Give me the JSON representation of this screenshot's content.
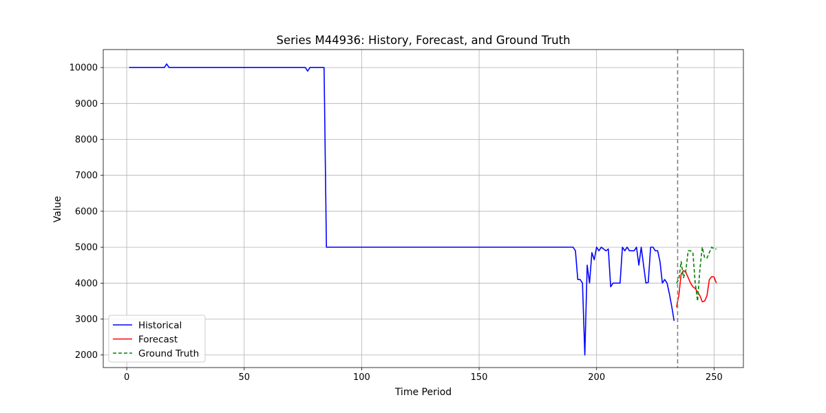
{
  "chart_data": {
    "type": "line",
    "title": "Series M44936: History, Forecast, and Ground Truth",
    "xlabel": "Time Period",
    "ylabel": "Value",
    "xlim": [
      -10,
      262.5
    ],
    "ylim": [
      1650,
      10500
    ],
    "xticks": [
      0,
      50,
      100,
      150,
      200,
      250
    ],
    "yticks": [
      2000,
      3000,
      4000,
      5000,
      6000,
      7000,
      8000,
      9000,
      10000
    ],
    "grid": true,
    "legend_position": "bottom-left",
    "vline": {
      "x": 234.5,
      "style": "dashed",
      "color": "#808080"
    },
    "series": [
      {
        "name": "Historical",
        "color": "#0000ff",
        "style": "solid",
        "points": [
          [
            1,
            10000
          ],
          [
            16,
            10000
          ],
          [
            17,
            10100
          ],
          [
            18,
            10000
          ],
          [
            76,
            10000
          ],
          [
            77,
            9900
          ],
          [
            78,
            10000
          ],
          [
            84,
            10000
          ],
          [
            85,
            5000
          ],
          [
            190,
            5000
          ],
          [
            191,
            4900
          ],
          [
            192,
            4100
          ],
          [
            193,
            4100
          ],
          [
            194,
            4000
          ],
          [
            195,
            2000
          ],
          [
            196,
            4500
          ],
          [
            197,
            4000
          ],
          [
            198,
            4850
          ],
          [
            199,
            4650
          ],
          [
            200,
            5000
          ],
          [
            201,
            4900
          ],
          [
            202,
            5000
          ],
          [
            203,
            4950
          ],
          [
            204,
            4900
          ],
          [
            205,
            4950
          ],
          [
            206,
            3900
          ],
          [
            207,
            4000
          ],
          [
            208,
            4000
          ],
          [
            209,
            4000
          ],
          [
            210,
            4000
          ],
          [
            211,
            5000
          ],
          [
            212,
            4900
          ],
          [
            213,
            5000
          ],
          [
            214,
            4900
          ],
          [
            215,
            4900
          ],
          [
            216,
            4900
          ],
          [
            217,
            5000
          ],
          [
            218,
            4500
          ],
          [
            219,
            5000
          ],
          [
            220,
            4500
          ],
          [
            221,
            4000
          ],
          [
            222,
            4020
          ],
          [
            223,
            5000
          ],
          [
            224,
            5000
          ],
          [
            225,
            4900
          ],
          [
            226,
            4900
          ],
          [
            227,
            4600
          ],
          [
            228,
            4000
          ],
          [
            229,
            4100
          ],
          [
            230,
            4000
          ],
          [
            231,
            3700
          ],
          [
            232,
            3350
          ],
          [
            233,
            2950
          ]
        ]
      },
      {
        "name": "Forecast",
        "color": "#ff0000",
        "style": "solid",
        "points": [
          [
            234,
            3330
          ],
          [
            235,
            3650
          ],
          [
            236,
            4250
          ],
          [
            237,
            4350
          ],
          [
            238,
            4300
          ],
          [
            239,
            4150
          ],
          [
            240,
            4000
          ],
          [
            241,
            3900
          ],
          [
            242,
            3850
          ],
          [
            243,
            3750
          ],
          [
            244,
            3650
          ],
          [
            245,
            3480
          ],
          [
            246,
            3500
          ],
          [
            247,
            3650
          ],
          [
            248,
            4100
          ],
          [
            249,
            4180
          ],
          [
            250,
            4170
          ],
          [
            251,
            4000
          ]
        ]
      },
      {
        "name": "Ground Truth",
        "color": "#008000",
        "style": "dashed",
        "points": [
          [
            234,
            4000
          ],
          [
            235,
            4100
          ],
          [
            236,
            4600
          ],
          [
            237,
            4150
          ],
          [
            238,
            4350
          ],
          [
            239,
            4900
          ],
          [
            240,
            4900
          ],
          [
            241,
            4850
          ],
          [
            242,
            4000
          ],
          [
            243,
            3500
          ],
          [
            244,
            4400
          ],
          [
            245,
            5000
          ],
          [
            246,
            4700
          ],
          [
            247,
            4700
          ],
          [
            248,
            4850
          ],
          [
            249,
            5000
          ],
          [
            250,
            4950
          ],
          [
            251,
            4950
          ]
        ]
      }
    ]
  }
}
